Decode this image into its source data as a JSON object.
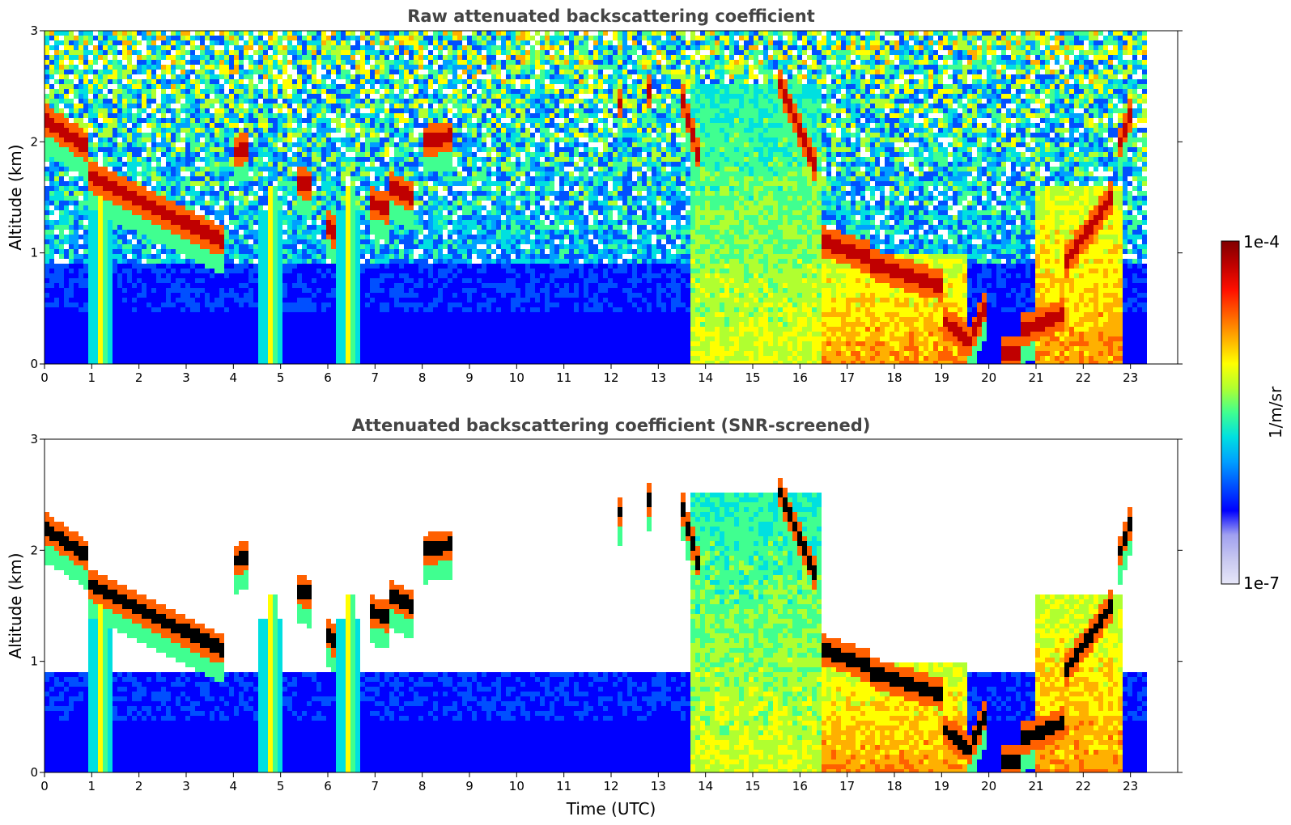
{
  "chart_data": [
    {
      "type": "heatmap",
      "title": "Raw attenuated backscattering coefficient",
      "xlabel": "",
      "ylabel": "Altitude (km)",
      "xlim": [
        0,
        24
      ],
      "ylim": [
        0,
        3
      ],
      "x_ticks": [
        0,
        1,
        2,
        3,
        4,
        5,
        6,
        7,
        8,
        9,
        10,
        11,
        12,
        13,
        14,
        15,
        16,
        17,
        18,
        19,
        20,
        21,
        22,
        23
      ],
      "y_ticks": [
        0,
        1,
        2,
        3
      ],
      "data_extent_hours": [
        0,
        23.3
      ],
      "screening": "none",
      "grid": false
    },
    {
      "type": "heatmap",
      "title": "Attenuated backscattering coefficient (SNR-screened)",
      "xlabel": "Time (UTC)",
      "ylabel": "Altitude (km)",
      "xlim": [
        0,
        24
      ],
      "ylim": [
        0,
        3
      ],
      "x_ticks": [
        0,
        1,
        2,
        3,
        4,
        5,
        6,
        7,
        8,
        9,
        10,
        11,
        12,
        13,
        14,
        15,
        16,
        17,
        18,
        19,
        20,
        21,
        22,
        23
      ],
      "y_ticks": [
        0,
        1,
        2,
        3
      ],
      "data_extent_hours": [
        0,
        23.3
      ],
      "screening": "SNR",
      "grid": false
    }
  ],
  "colorbar": {
    "label": "1/m/sr",
    "min_label": "1e-7",
    "max_label": "1e-4",
    "scale": "log",
    "colormap": [
      "#e6e6f8",
      "#c8c8f0",
      "#a0a0f0",
      "#0000ff",
      "#0050ff",
      "#00a0ff",
      "#00e0e0",
      "#40ff90",
      "#b0ff30",
      "#ffff00",
      "#ffb000",
      "#ff6000",
      "#ff1000",
      "#c00000",
      "#800000"
    ]
  },
  "features": {
    "cloud_layers": [
      {
        "t": [
          0.0,
          0.9
        ],
        "alt_km": [
          2.2,
          1.95
        ]
      },
      {
        "t": [
          0.9,
          3.8
        ],
        "alt_km": [
          1.7,
          1.1
        ]
      },
      {
        "t": [
          5.3,
          5.7
        ],
        "alt_km": [
          1.65,
          1.6
        ]
      },
      {
        "t": [
          6.0,
          6.2
        ],
        "alt_km": [
          1.25,
          1.15
        ]
      },
      {
        "t": [
          6.9,
          7.3
        ],
        "alt_km": [
          1.45,
          1.4
        ]
      },
      {
        "t": [
          7.3,
          7.8
        ],
        "alt_km": [
          1.6,
          1.5
        ]
      },
      {
        "t": [
          8.0,
          8.6
        ],
        "alt_km": [
          2.0,
          2.05
        ]
      },
      {
        "t": [
          4.0,
          4.3
        ],
        "alt_km": [
          1.9,
          1.95
        ]
      },
      {
        "t": [
          12.1,
          12.2
        ],
        "alt_km": [
          2.35,
          2.35
        ]
      },
      {
        "t": [
          12.8,
          12.9
        ],
        "alt_km": [
          2.45,
          2.45
        ]
      },
      {
        "t": [
          13.5,
          13.9
        ],
        "alt_km": [
          2.4,
          1.8
        ]
      },
      {
        "t": [
          15.5,
          16.4
        ],
        "alt_km": [
          2.6,
          1.7
        ]
      },
      {
        "t": [
          16.5,
          17.5
        ],
        "alt_km": [
          1.1,
          0.95
        ]
      },
      {
        "t": [
          17.5,
          19.0
        ],
        "alt_km": [
          0.9,
          0.7
        ]
      },
      {
        "t": [
          19.0,
          19.6
        ],
        "alt_km": [
          0.4,
          0.2
        ]
      },
      {
        "t": [
          19.6,
          20.0
        ],
        "alt_km": [
          0.2,
          0.6
        ]
      },
      {
        "t": [
          20.3,
          20.7
        ],
        "alt_km": [
          0.1,
          0.1
        ]
      },
      {
        "t": [
          20.7,
          21.6
        ],
        "alt_km": [
          0.3,
          0.45
        ]
      },
      {
        "t": [
          21.6,
          22.6
        ],
        "alt_km": [
          0.9,
          1.5
        ]
      },
      {
        "t": [
          22.7,
          23.0
        ],
        "alt_km": [
          1.9,
          2.25
        ]
      }
    ],
    "precipitation_columns_hours": [
      1.2,
      4.8,
      6.45
    ],
    "diffuse_regions": [
      {
        "t": [
          13.7,
          16.5
        ],
        "alt_km": [
          0.0,
          2.5
        ],
        "level": "medium"
      },
      {
        "t": [
          16.5,
          19.5
        ],
        "alt_km": [
          0.0,
          1.0
        ],
        "level": "high"
      },
      {
        "t": [
          21.0,
          22.8
        ],
        "alt_km": [
          0.0,
          1.6
        ],
        "level": "high"
      }
    ]
  }
}
